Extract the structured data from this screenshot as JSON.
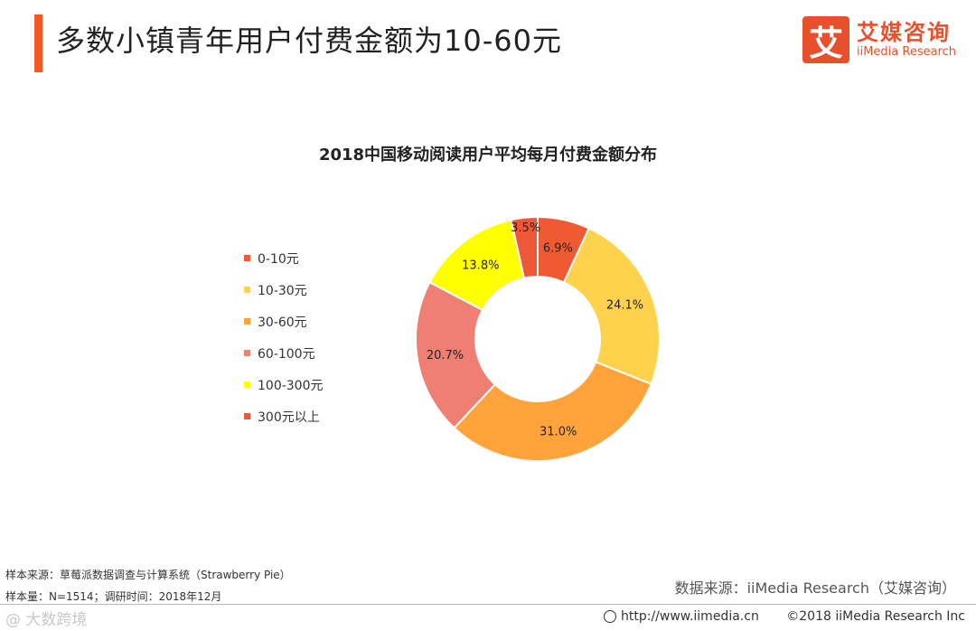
{
  "header": {
    "title": "多数小镇青年用户付费金额为10-60元"
  },
  "logo": {
    "mark": "艾",
    "name_cn": "艾媒咨询",
    "name_en": "iiMedia Research"
  },
  "chart_data": {
    "type": "pie",
    "variant": "donut",
    "title": "2018中国移动阅读用户平均每月付费金额分布",
    "categories": [
      "0-10元",
      "10-30元",
      "30-60元",
      "60-100元",
      "100-300元",
      "300元以上"
    ],
    "values": [
      6.9,
      24.1,
      31.0,
      20.7,
      13.8,
      3.5
    ],
    "labels": [
      "6.9%",
      "24.1%",
      "31.0%",
      "20.7%",
      "13.8%",
      "3.5%"
    ],
    "colors": [
      "#f05a32",
      "#ffd24d",
      "#ffa33a",
      "#ef7f72",
      "#ffff00",
      "#ee5838"
    ],
    "legend_position": "left",
    "start": "12 o'clock",
    "direction": "clockwise"
  },
  "source": {
    "sample_source": "样本来源：草莓派数据调查与计算系统（Strawberry Pie）",
    "sample_size": "样本量：N=1514；调研时间：2018年12月",
    "data_source": "数据来源：iiMedia Research（艾媒咨询）"
  },
  "footer": {
    "watermark": "@ 大数跨境",
    "url": "http://www.iimedia.cn",
    "copyright": "©2018  iiMedia Research  Inc"
  }
}
